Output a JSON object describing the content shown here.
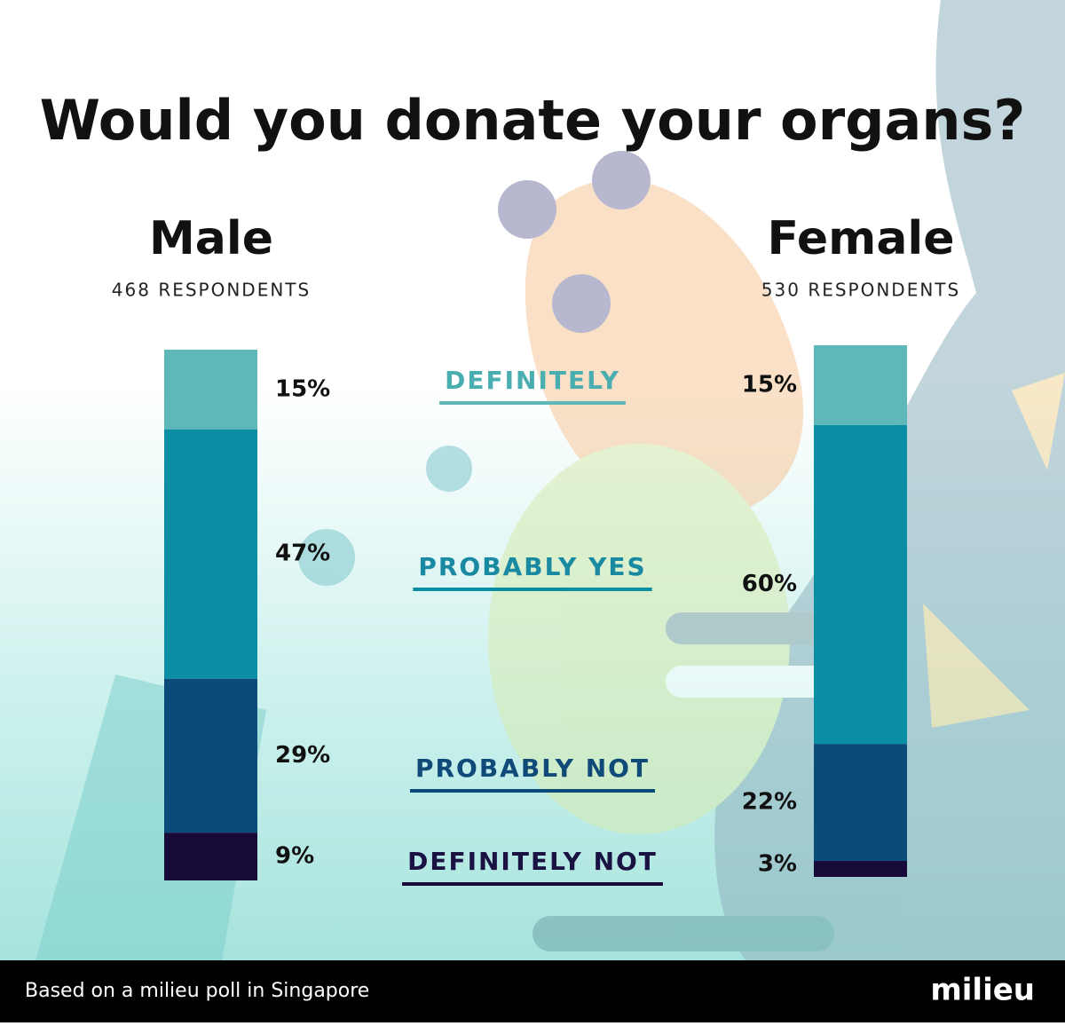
{
  "chart_data": {
    "type": "stacked-bar",
    "title": "Would you donate your organs?",
    "categories": [
      "Male",
      "Female"
    ],
    "respondents": [
      "468 RESPONDENTS",
      "530 RESPONDENTS"
    ],
    "series": [
      {
        "name": "DEFINITELY",
        "color": "#5fb8b8",
        "text_color": "#4aaeb0",
        "values": [
          15,
          15
        ],
        "value_labels": [
          "15%",
          "15%"
        ]
      },
      {
        "name": "PROBABLY YES",
        "color": "#0a8ea3",
        "text_color": "#1a8aa2",
        "values": [
          47,
          60
        ],
        "value_labels": [
          "47%",
          "60%"
        ]
      },
      {
        "name": "PROBABLY NOT",
        "color": "#0b4b79",
        "text_color": "#0f4a78",
        "values": [
          29,
          22
        ],
        "value_labels": [
          "29%",
          "22%"
        ]
      },
      {
        "name": "DEFINITELY NOT",
        "color": "#170a38",
        "text_color": "#1a1242",
        "values": [
          9,
          3
        ],
        "value_labels": [
          "9%",
          "3%"
        ]
      }
    ]
  },
  "footer": {
    "source": "Based on a milieu poll in Singapore",
    "brand": "milieu"
  }
}
